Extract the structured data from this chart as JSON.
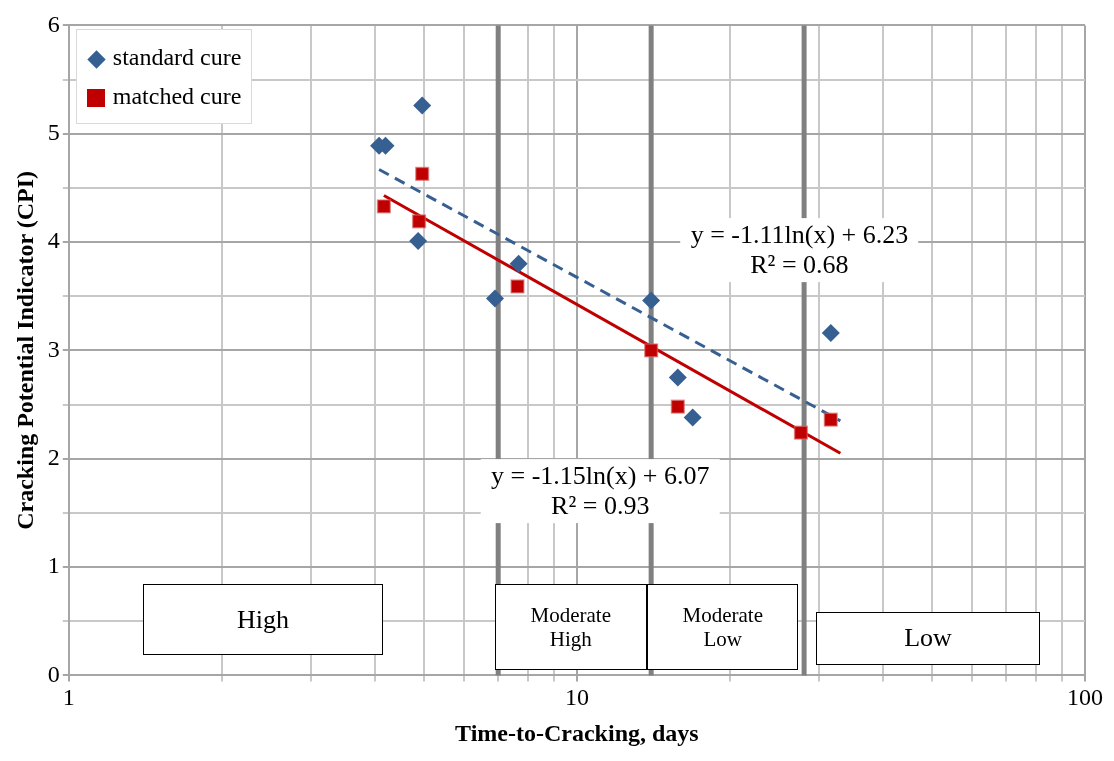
{
  "chart_data": {
    "type": "scatter",
    "xlabel": "Time-to-Cracking, days",
    "ylabel": "Cracking Potential Indicator (CPI)",
    "log": "x",
    "xlim": [
      1,
      100
    ],
    "xticks": [
      1,
      {
        "value": 2,
        "label": null
      },
      {
        "value": 3,
        "label": null
      },
      {
        "value": 4,
        "label": null
      },
      {
        "value": 5,
        "label": null
      },
      {
        "value": 6,
        "label": null
      },
      {
        "value": 7,
        "label": null
      },
      {
        "value": 8,
        "label": null
      },
      {
        "value": 9,
        "label": null
      },
      10,
      {
        "value": 20,
        "label": null
      },
      {
        "value": 30,
        "label": null
      },
      {
        "value": 40,
        "label": null
      },
      {
        "value": 50,
        "label": null
      },
      {
        "value": 60,
        "label": null
      },
      {
        "value": 70,
        "label": null
      },
      {
        "value": 80,
        "label": null
      },
      {
        "value": 90,
        "label": null
      },
      100
    ],
    "ylim": [
      0,
      6
    ],
    "yticks": [
      0,
      {
        "value": 0.5,
        "label": null
      },
      1,
      {
        "value": 1.5,
        "label": null
      },
      2,
      {
        "value": 2.5,
        "label": null
      },
      3,
      {
        "value": 3.5,
        "label": null
      },
      4,
      {
        "value": 4.5,
        "label": null
      },
      5,
      {
        "value": 5.5,
        "label": null
      },
      6
    ],
    "grid": true,
    "legend": "top left",
    "series": [
      {
        "name": "standard cure",
        "marker": "diamond",
        "color": "#376092",
        "x": [
          4.08,
          4.2,
          4.96,
          4.87,
          6.9,
          7.68,
          14.0,
          15.8,
          16.9,
          31.6
        ],
        "values": [
          4.89,
          4.89,
          5.26,
          4.01,
          3.48,
          3.8,
          3.46,
          2.75,
          2.38,
          3.16
        ]
      },
      {
        "name": "matched cure",
        "marker": "square",
        "color": "#c00000",
        "x": [
          4.17,
          4.89,
          4.96,
          7.64,
          14.0,
          15.8,
          27.6,
          31.6
        ],
        "values": [
          4.33,
          4.19,
          4.63,
          3.59,
          3.0,
          2.48,
          2.24,
          2.36
        ]
      },
      {
        "type": "line",
        "marker": "none",
        "line_style": "dashed",
        "color": "#376092",
        "x": [
          4.08,
          33
        ],
        "values": [
          4.67,
          2.35
        ]
      },
      {
        "type": "line",
        "marker": "none",
        "line_style": "solid",
        "color": "#c00000",
        "x": [
          4.17,
          33
        ],
        "values": [
          4.43,
          2.05
        ]
      }
    ],
    "ref_lines": [
      {
        "axis": "x",
        "value": 7,
        "color": "#808080"
      },
      {
        "axis": "x",
        "value": 14,
        "color": "#808080"
      },
      {
        "axis": "x",
        "value": 28,
        "color": "#808080"
      }
    ],
    "annotations": [
      "y = -1.11ln(x) + 6.23\nR² = 0.68",
      "y = -1.15ln(x) + 6.07\nR² = 0.93",
      "High",
      "Moderate\nHigh",
      "Moderate\nLow",
      "Low"
    ]
  }
}
